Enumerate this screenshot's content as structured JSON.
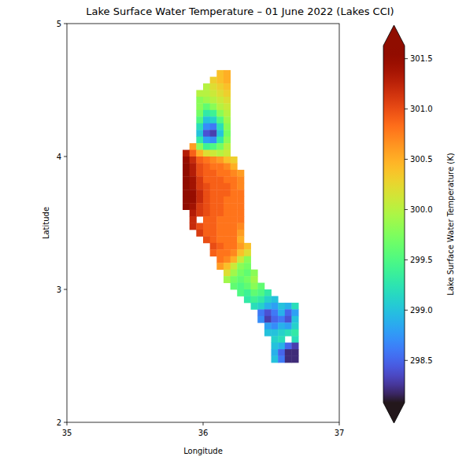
{
  "chart_data": {
    "type": "heatmap",
    "title": "Lake Surface Water Temperature – 01 June 2022 (Lakes CCI)",
    "x_label": "Longitude",
    "y_label": "Latitude",
    "xlim": [
      35,
      37
    ],
    "ylim": [
      2,
      5
    ],
    "xticks": [
      35,
      36,
      37
    ],
    "yticks": [
      2,
      3,
      4,
      5
    ],
    "cell_size": 0.05,
    "rows": [
      {
        "lat": 4.625,
        "lon0": 36.125,
        "values": [
          300.4,
          300.5
        ]
      },
      {
        "lat": 4.575,
        "lon0": 36.075,
        "values": [
          300.3,
          300.4,
          300.5
        ]
      },
      {
        "lat": 4.525,
        "lon0": 36.025,
        "values": [
          300.0,
          300.2,
          300.3,
          300.4
        ]
      },
      {
        "lat": 4.475,
        "lon0": 35.975,
        "values": [
          300.0,
          300.0,
          300.1,
          300.2,
          300.3
        ]
      },
      {
        "lat": 4.425,
        "lon0": 35.975,
        "values": [
          299.8,
          299.9,
          300.0,
          300.1,
          300.2
        ]
      },
      {
        "lat": 4.375,
        "lon0": 35.975,
        "values": [
          299.8,
          299.6,
          299.8,
          300.0,
          300.1
        ]
      },
      {
        "lat": 4.325,
        "lon0": 35.975,
        "values": [
          299.7,
          299.3,
          299.4,
          299.8,
          300.0
        ]
      },
      {
        "lat": 4.275,
        "lon0": 35.975,
        "values": [
          299.5,
          299.0,
          299.1,
          299.5,
          299.9
        ]
      },
      {
        "lat": 4.225,
        "lon0": 35.975,
        "values": [
          299.2,
          298.7,
          298.6,
          299.2,
          299.8
        ]
      },
      {
        "lat": 4.175,
        "lon0": 35.975,
        "values": [
          299.0,
          298.4,
          298.3,
          299.0,
          299.7
        ]
      },
      {
        "lat": 4.125,
        "lon0": 35.975,
        "values": [
          299.3,
          298.8,
          298.7,
          299.3,
          299.8
        ]
      },
      {
        "lat": 4.075,
        "lon0": 35.925,
        "values": [
          300.6,
          299.8,
          299.4,
          299.5,
          299.7,
          300.0
        ]
      },
      {
        "lat": 4.025,
        "lon0": 35.875,
        "values": [
          301.3,
          300.9,
          300.5,
          300.2,
          300.1,
          300.0,
          300.1
        ]
      },
      {
        "lat": 3.975,
        "lon0": 35.875,
        "values": [
          301.5,
          301.2,
          300.9,
          300.8,
          300.7,
          300.6,
          300.4,
          300.3
        ]
      },
      {
        "lat": 3.925,
        "lon0": 35.875,
        "values": [
          301.6,
          301.3,
          301.0,
          300.9,
          300.8,
          300.8,
          300.7,
          300.5
        ]
      },
      {
        "lat": 3.875,
        "lon0": 35.875,
        "values": [
          301.6,
          301.3,
          301.0,
          300.9,
          300.9,
          300.8,
          300.8,
          300.7,
          300.6
        ]
      },
      {
        "lat": 3.825,
        "lon0": 35.875,
        "values": [
          301.6,
          301.4,
          301.1,
          300.9,
          300.9,
          300.9,
          300.8,
          300.8,
          300.7
        ]
      },
      {
        "lat": 3.775,
        "lon0": 35.875,
        "values": [
          301.7,
          301.4,
          301.1,
          301.0,
          300.9,
          300.9,
          300.9,
          300.8,
          300.7
        ]
      },
      {
        "lat": 3.725,
        "lon0": 35.875,
        "values": [
          301.7,
          301.5,
          301.2,
          301.0,
          300.9,
          300.9,
          300.9,
          300.8,
          300.8
        ]
      },
      {
        "lat": 3.675,
        "lon0": 35.875,
        "values": [
          301.7,
          301.5,
          301.2,
          301.0,
          300.9,
          300.9,
          300.8,
          300.8,
          300.8
        ]
      },
      {
        "lat": 3.625,
        "lon0": 35.875,
        "values": [
          301.6,
          301.4,
          301.1,
          301.0,
          300.9,
          300.9,
          300.8,
          300.8,
          300.8
        ]
      },
      {
        "lat": 3.575,
        "lon0": 35.925,
        "values": [
          301.3,
          301.1,
          301.0,
          300.9,
          300.9,
          300.8,
          300.8,
          300.8
        ]
      },
      {
        "lat": 3.525,
        "lon0": 35.925,
        "values": [
          301.2,
          null,
          300.9,
          300.9,
          300.8,
          300.8,
          300.8,
          300.8
        ]
      },
      {
        "lat": 3.475,
        "lon0": 35.925,
        "values": [
          301.2,
          301.0,
          300.9,
          300.9,
          300.8,
          300.8,
          300.8,
          300.7
        ]
      },
      {
        "lat": 3.425,
        "lon0": 35.975,
        "values": [
          301.1,
          300.9,
          300.9,
          300.8,
          300.8,
          300.8,
          300.6
        ]
      },
      {
        "lat": 3.375,
        "lon0": 36.025,
        "values": [
          301.0,
          300.9,
          300.8,
          300.8,
          300.8,
          300.5
        ]
      },
      {
        "lat": 3.325,
        "lon0": 36.075,
        "values": [
          301.0,
          300.9,
          300.8,
          300.8,
          300.6,
          300.4
        ]
      },
      {
        "lat": 3.275,
        "lon0": 36.075,
        "values": [
          300.9,
          300.8,
          300.8,
          300.7,
          300.4,
          300.2
        ]
      },
      {
        "lat": 3.225,
        "lon0": 36.125,
        "values": [
          300.8,
          300.7,
          300.5,
          300.1,
          299.8
        ]
      },
      {
        "lat": 3.175,
        "lon0": 36.125,
        "values": [
          300.6,
          300.4,
          300.1,
          299.8,
          299.7
        ]
      },
      {
        "lat": 3.125,
        "lon0": 36.175,
        "values": [
          300.2,
          299.9,
          299.7,
          299.6,
          299.8
        ]
      },
      {
        "lat": 3.075,
        "lon0": 36.175,
        "values": [
          299.9,
          299.7,
          299.6,
          299.7,
          299.9
        ]
      },
      {
        "lat": 3.025,
        "lon0": 36.225,
        "values": [
          299.6,
          299.5,
          299.6,
          299.8,
          299.6
        ]
      },
      {
        "lat": 2.975,
        "lon0": 36.275,
        "values": [
          299.5,
          299.4,
          299.6,
          299.5,
          299.3
        ]
      },
      {
        "lat": 2.925,
        "lon0": 36.325,
        "values": [
          299.3,
          299.4,
          299.3,
          299.1,
          299.0
        ]
      },
      {
        "lat": 2.875,
        "lon0": 36.375,
        "values": [
          299.2,
          299.1,
          298.9,
          298.8,
          299.0,
          298.9,
          299.2
        ]
      },
      {
        "lat": 2.825,
        "lon0": 36.425,
        "values": [
          298.6,
          298.4,
          298.6,
          298.9,
          298.5,
          298.8
        ]
      },
      {
        "lat": 2.775,
        "lon0": 36.425,
        "values": [
          298.7,
          298.3,
          298.5,
          298.6,
          298.4,
          299.0
        ]
      },
      {
        "lat": 2.725,
        "lon0": 36.475,
        "values": [
          298.8,
          298.7,
          298.9,
          298.8,
          299.1
        ]
      },
      {
        "lat": 2.675,
        "lon0": 36.475,
        "values": [
          299.0,
          299.0,
          299.1,
          299.2,
          299.3
        ]
      },
      {
        "lat": 2.625,
        "lon0": 36.525,
        "values": [
          299.1,
          299.2,
          null,
          299.2
        ]
      },
      {
        "lat": 2.575,
        "lon0": 36.525,
        "values": [
          299.0,
          298.9,
          298.5,
          298.3
        ]
      },
      {
        "lat": 2.525,
        "lon0": 36.525,
        "values": [
          298.9,
          298.5,
          298.2,
          298.2
        ]
      },
      {
        "lat": 2.475,
        "lon0": 36.525,
        "values": [
          299.0,
          298.6,
          298.2,
          298.2
        ]
      }
    ],
    "colorbar": {
      "label": "Lake Surface Water Temperature (K)",
      "range": [
        298.08,
        301.63
      ],
      "ticks": [
        298.5,
        {
          "value": 299,
          "label": "299.0"
        },
        299.5,
        {
          "value": 300,
          "label": "300.0"
        },
        300.5,
        {
          "value": 301,
          "label": "301.0"
        },
        301.5
      ]
    }
  }
}
